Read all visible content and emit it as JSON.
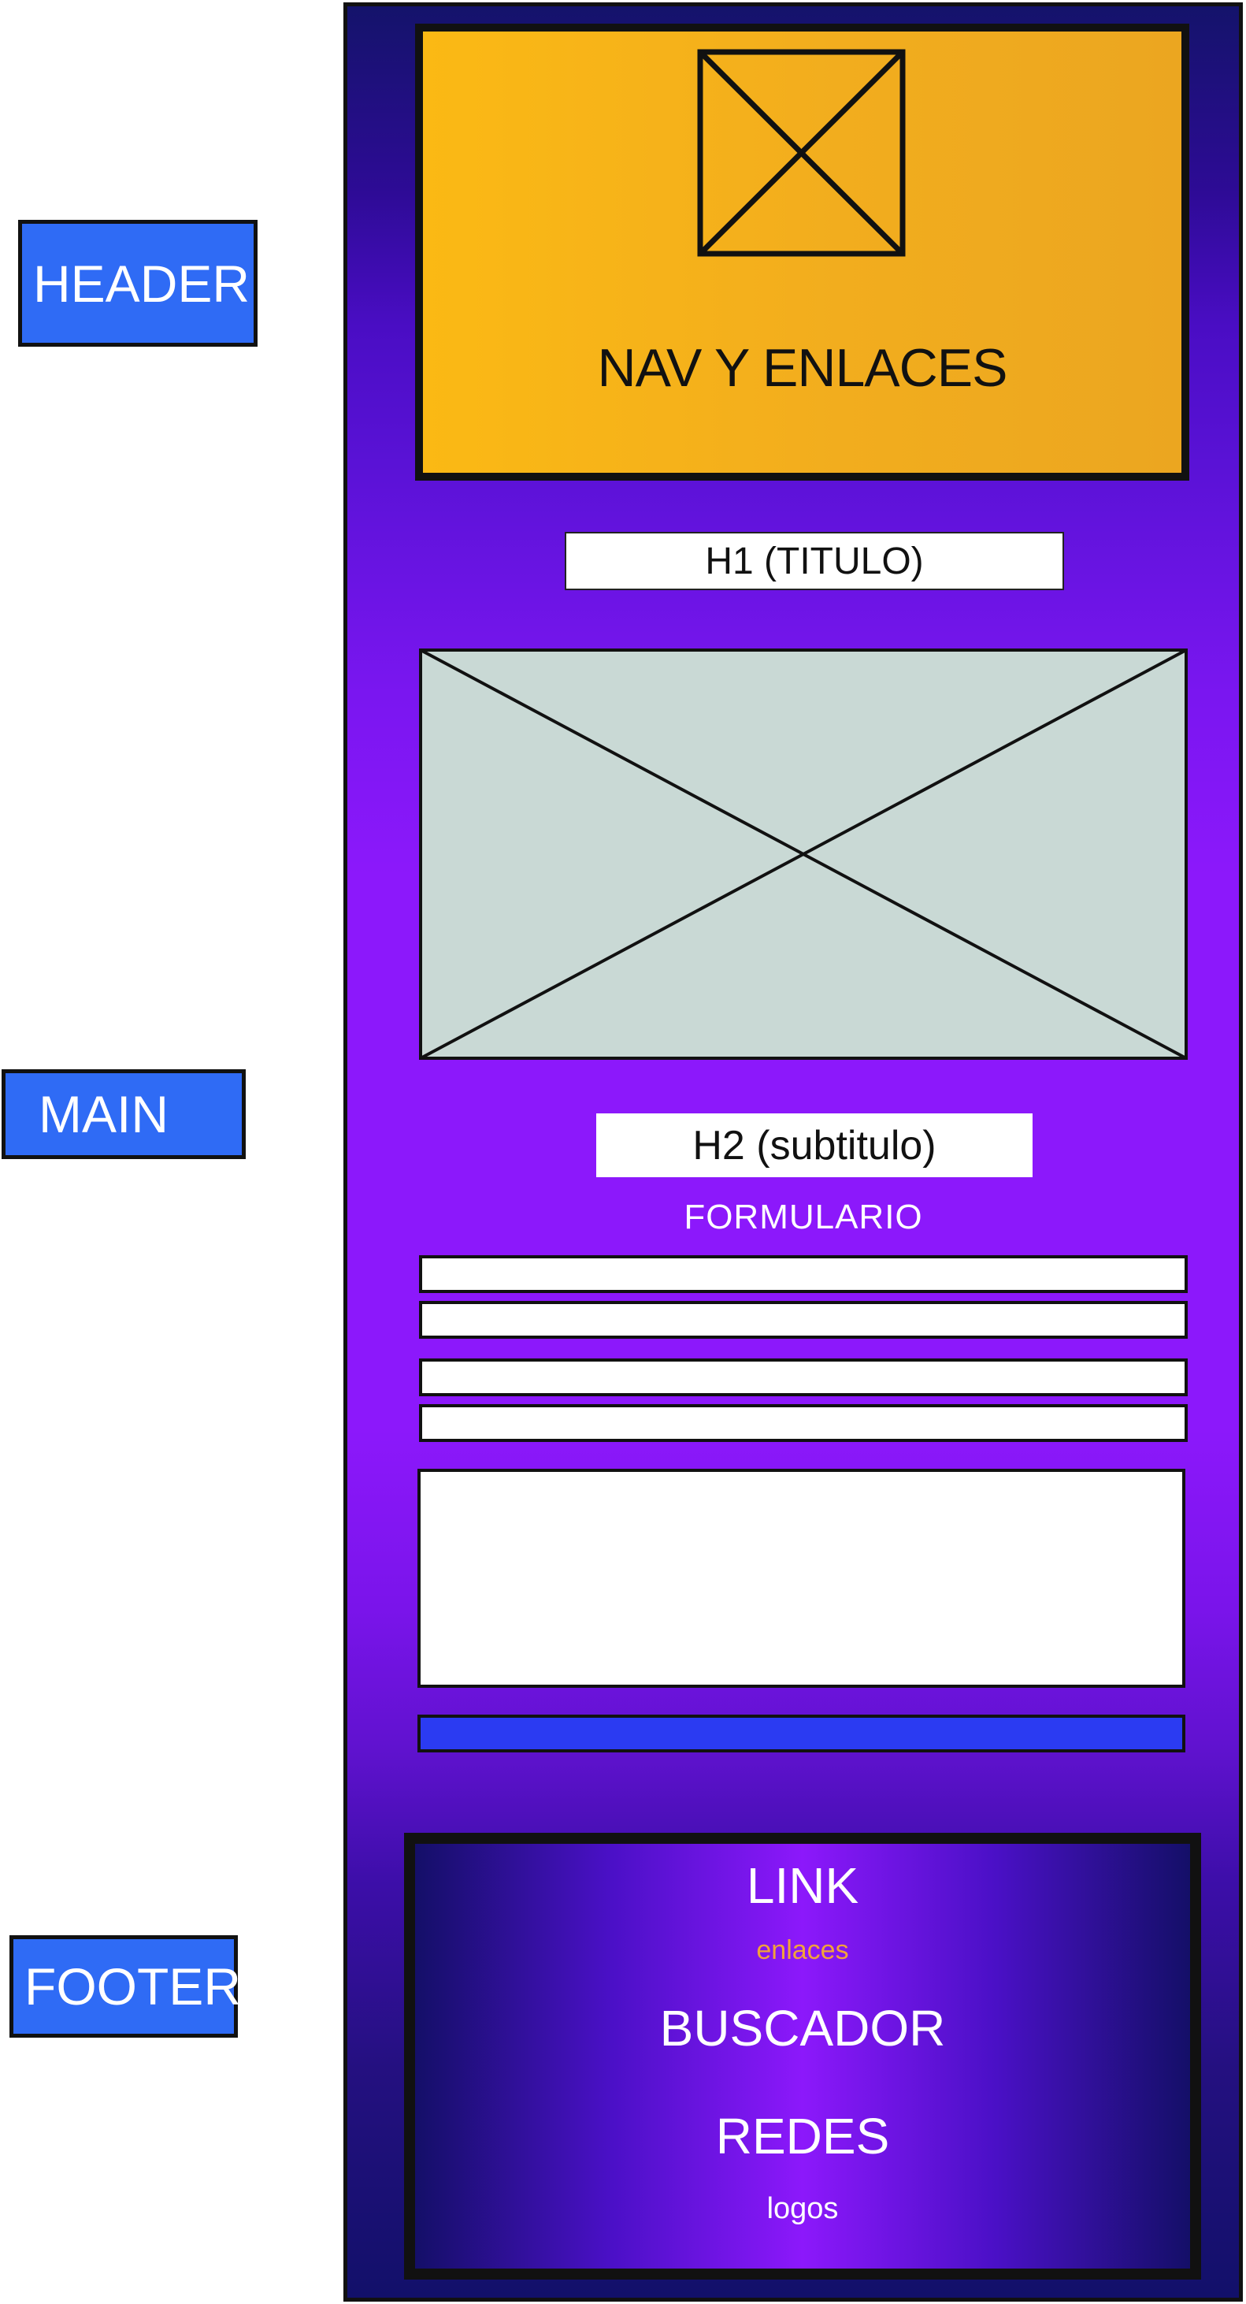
{
  "side_labels": {
    "header": "HEADER",
    "main": "MAIN",
    "footer": "FOOTER"
  },
  "header": {
    "nav_text": "NAV Y ENLACES",
    "logo_icon": "image-placeholder-icon"
  },
  "main": {
    "h1": "H1 (TITULO)",
    "hero_icon": "image-placeholder-icon",
    "h2": "H2 (subtitulo)",
    "form_title": "FORMULARIO"
  },
  "footer": {
    "link": "LINK",
    "enlaces": "enlaces",
    "buscador": "BUSCADOR",
    "redes": "REDES",
    "logos": "logos"
  },
  "colors": {
    "label_blue": "#2f6bf5",
    "header_orange": "#f2ad1e",
    "page_purple": "#8c18fb",
    "page_navy": "#14136b",
    "image_placeholder": "#c9d9d5",
    "submit_blue": "#2b3bf2",
    "enlaces_orange": "#f2a23a"
  }
}
